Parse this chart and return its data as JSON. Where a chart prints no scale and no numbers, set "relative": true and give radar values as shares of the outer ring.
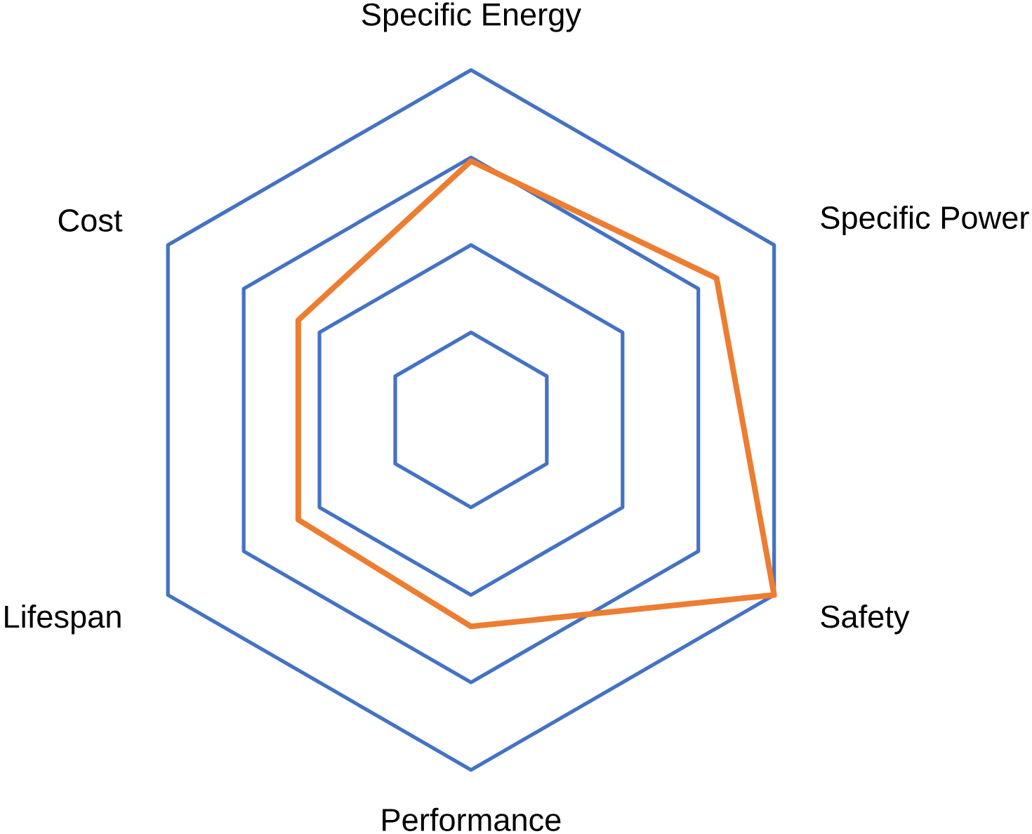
{
  "chart_data": {
    "type": "radar",
    "relative": true,
    "grid": true,
    "categories": [
      "Specific Energy",
      "Specific Power",
      "Safety",
      "Performance",
      "Lifespan",
      "Cost"
    ],
    "series": [
      {
        "color": "#ed7d31",
        "values": [
          0.74,
          0.81,
          1.0,
          0.59,
          0.57,
          0.57
        ]
      }
    ]
  }
}
